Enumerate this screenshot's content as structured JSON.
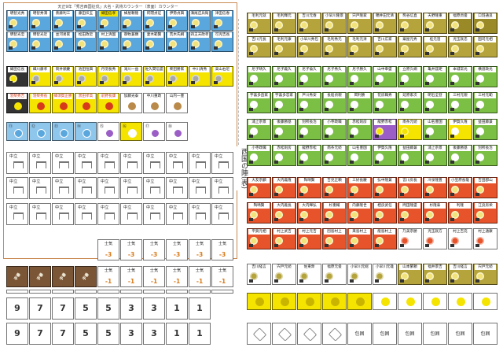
{
  "caption": "天正9年「秀吉西国征伐」大名・武将カウンター（表面）カウンター",
  "sheet_title": "西国の陣(表)",
  "icons": {
    "kamon": "kamon-crest-icon",
    "leader": "leader-mark-icon",
    "torii": "torii-shape-icon",
    "wheel": "wheel-crest-icon",
    "flag": "banner-flag-icon",
    "hexagon": "siege-hexagon-icon"
  },
  "colors": {
    "blue": "#5aa7dd",
    "blue_light": "#8fc6ec",
    "yellow": "#f5e400",
    "yellow_dark": "#e0c600",
    "orange_header": "#ffffff",
    "red": "#e7532a",
    "red_dark": "#c93d18",
    "olive": "#b5a43c",
    "olive_dark": "#9a8a27",
    "green": "#7cbf45",
    "green_dark": "#5fa236",
    "purple": "#9b5ec6",
    "gray": "#777777",
    "brown_frame": "#c98a52"
  },
  "left_rows": {
    "row1": [
      "明智光秀",
      "明智秀満",
      "斎藤利三",
      "藤田伝五",
      "織田信孝",
      "蜂屋頼隆",
      "阿閉貞征",
      "伊勢貞興",
      "溝尾庄兵衛",
      "津田信春"
    ],
    "row2": [
      "明智光忠",
      "明智光近",
      "並河易家",
      "松田政近",
      "村上清国",
      "御牧兼顕",
      "妻木範賢",
      "荒木氏綱",
      "四王天政孝",
      "可児吉長"
    ],
    "row3": [
      "織田信長",
      "細川藤孝",
      "筒井順慶",
      "池田恒興",
      "丹羽長秀",
      "滝川一益",
      "佐久間信盛",
      "柴田勝家",
      "中川清秀",
      "高山右近"
    ],
    "row4": [
      "羽柴秀吉",
      "羽柴秀長",
      "蜂須賀正勝",
      "黒田孝高",
      "前野長康",
      "加藤光泰",
      "中川重政",
      "山内一豊"
    ],
    "row5_labels": [
      "⑪",
      "⑫",
      "⑬",
      "⑭",
      "⑮",
      "⑯",
      "⑰",
      "⑱"
    ],
    "ashigaru_label": "中立",
    "morale_label": "士気",
    "morale_minus3": "-3",
    "morale_minus1": "-1",
    "round_numbers": [
      "9",
      "7",
      "7",
      "5",
      "5",
      "3",
      "3",
      "1",
      "1"
    ],
    "flags": [
      "手番",
      "手番",
      "手番",
      "手番"
    ]
  },
  "right_rows": {
    "row1": [
      "毛利元就",
      "毛利輝元",
      "吉川元春",
      "小早川隆景",
      "宍戸隆家",
      "穂井田元清",
      "熊谷信直",
      "天野隆重",
      "福原貞俊",
      "口羽通良"
    ],
    "row2": [
      "吉川元長",
      "毛利元康",
      "小早川秀包",
      "毛利秀元",
      "毛利元清",
      "吉川広家",
      "粟屋元秀",
      "桂元澄",
      "児玉就忠",
      "国司元相"
    ],
    "row3": [
      "尼子晴久",
      "尼子義久",
      "尼子倫久",
      "尼子秀久",
      "尼子勝久",
      "山中幸盛",
      "立原久綱",
      "亀井茲矩",
      "本城常光",
      "横道政光"
    ],
    "row4": [
      "宇喜多直家",
      "宇喜多忠家",
      "戸川秀安",
      "長船貞親",
      "岡利勝",
      "花房職秀",
      "延原家次",
      "明石全登",
      "三村元親",
      "三村元範"
    ],
    "row5": [
      "浦上宗景",
      "後藤勝基",
      "別所長治",
      "小寺政職",
      "赤松則房",
      "龍野赤松",
      "南条元続",
      "山名豊国",
      "伊賀久隆",
      "益田藤兼"
    ],
    "row6": [
      "大友宗麟",
      "大内義隆",
      "陶晴賢",
      "吉見正頼",
      "三好長慶",
      "弘中隆兼",
      "宮川房長",
      "冷泉隆豊",
      "小笠原長雄",
      "吉田郡山"
    ],
    "row7": [
      "陶晴賢",
      "大内義長",
      "大内輝弘",
      "杉重輔",
      "内藤隆世",
      "相良武任",
      "問田隆盛",
      "杉隆泰",
      "利隆",
      "江良房栄"
    ],
    "row8": [
      "平賀元相",
      "村上武吉",
      "村上元吉",
      "因島村上",
      "来島村上",
      "能島村上",
      "乃美宗勝",
      "児玉就方",
      "村上吉充",
      "村上通康"
    ],
    "row9": [
      "吉川経言",
      "宍戸元続",
      "佐東衆",
      "福原元俊",
      "小早川元総",
      "小早川元雄",
      "山本繁頼",
      "福井景吉"
    ],
    "siege_label": "包囲"
  }
}
